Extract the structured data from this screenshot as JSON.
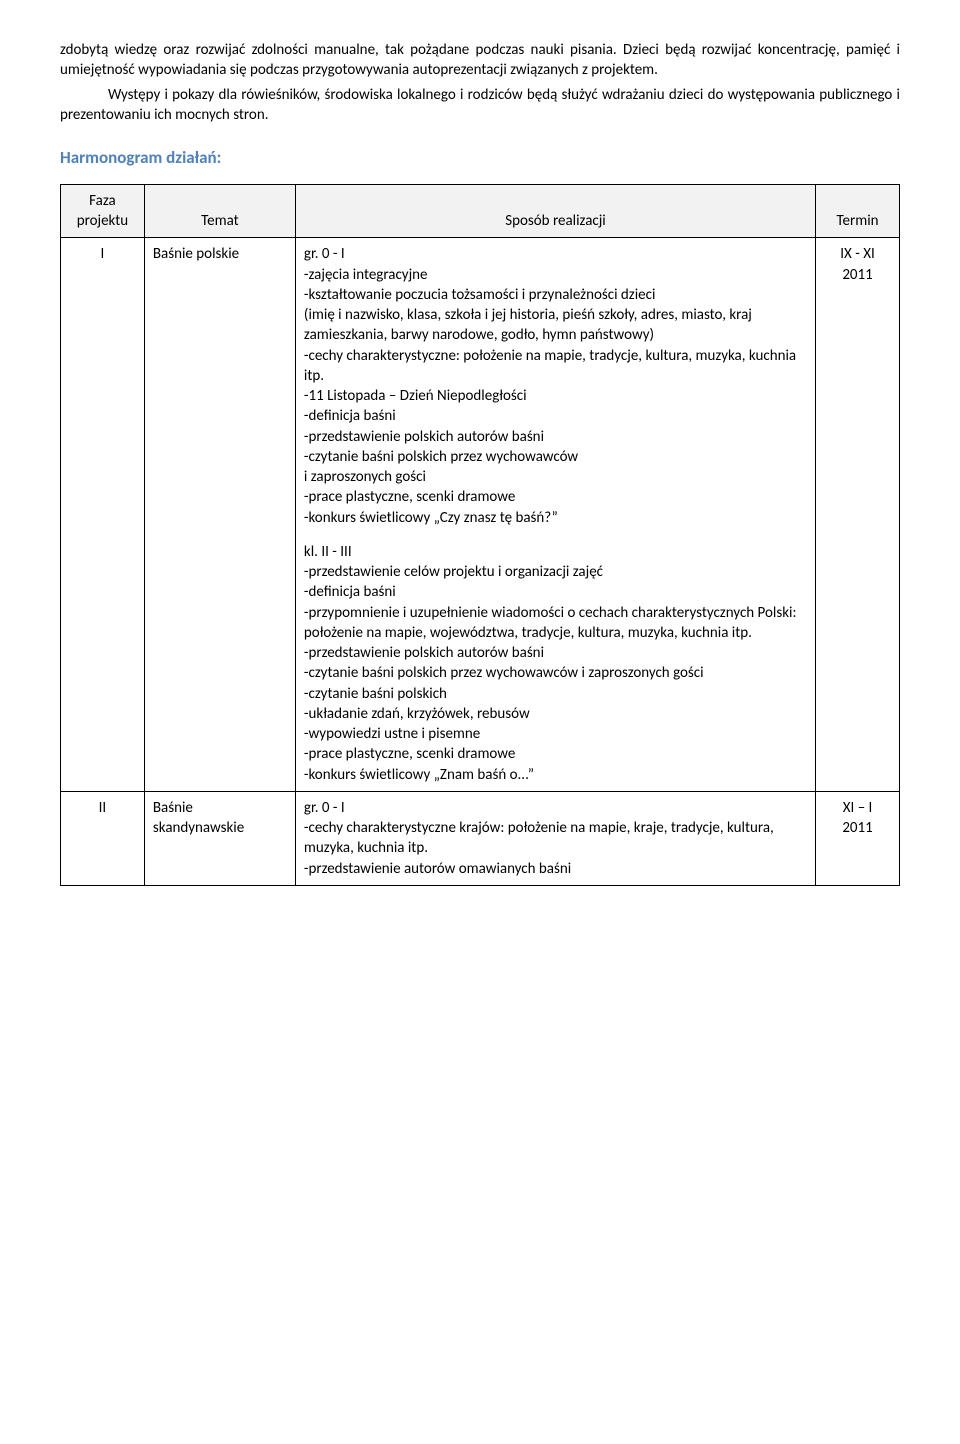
{
  "intro": {
    "p1": "zdobytą wiedzę oraz rozwijać zdolności manualne, tak pożądane podczas nauki pisania. Dzieci będą rozwijać koncentrację, pamięć i umiejętność wypowiadania się podczas przygotowywania autoprezentacji związanych z projektem.",
    "p2": "Występy i pokazy dla rówieśników, środowiska lokalnego i rodziców będą służyć wdrażaniu dzieci do występowania publicznego i prezentowaniu ich mocnych stron."
  },
  "section_heading": "Harmonogram działań:",
  "table": {
    "headers": {
      "faza_l1": "Faza",
      "faza_l2": "projektu",
      "temat": "Temat",
      "sposob": "Sposób realizacji",
      "termin": "Termin"
    },
    "rows": [
      {
        "faza": "I",
        "temat": "Baśnie polskie",
        "termin_l1": "IX - XI",
        "termin_l2": "2011",
        "sposob_block1_title": "gr. 0 - I",
        "sposob_block1_lines": [
          "-zajęcia integracyjne",
          "-kształtowanie poczucia tożsamości i przynależności dzieci",
          "(imię i nazwisko, klasa, szkoła i jej historia,  pieśń szkoły, adres, miasto, kraj zamieszkania, barwy narodowe, godło, hymn państwowy)",
          "-cechy charakterystyczne: położenie na mapie, tradycje, kultura, muzyka, kuchnia itp.",
          "-11 Listopada – Dzień Niepodległości",
          "-definicja baśni",
          "-przedstawienie polskich autorów baśni",
          "-czytanie baśni polskich przez wychowawców",
          "i zaproszonych gości",
          "-prace plastyczne, scenki dramowe",
          "-konkurs świetlicowy „Czy znasz tę baśń?”"
        ],
        "sposob_block2_title": "kl. II - III",
        "sposob_block2_lines": [
          "-przedstawienie celów projektu i organizacji zajęć",
          "-definicja baśni",
          "-przypomnienie i uzupełnienie wiadomości o cechach charakterystycznych Polski: położenie na mapie, województwa, tradycje, kultura, muzyka, kuchnia itp.",
          "-przedstawienie polskich autorów baśni",
          "-czytanie baśni polskich przez wychowawców i zaproszonych gości",
          "-czytanie baśni polskich",
          "-układanie zdań, krzyżówek, rebusów",
          "-wypowiedzi ustne i pisemne",
          "-prace plastyczne, scenki dramowe",
          "-konkurs świetlicowy „Znam baśń o...”"
        ]
      },
      {
        "faza": "II",
        "temat_l1": "Baśnie",
        "temat_l2": "skandynawskie",
        "termin_l1": "XI – I",
        "termin_l2": "2011",
        "sposob_title": "gr. 0 - I",
        "sposob_lines": [
          "-cechy charakterystyczne krajów: położenie na mapie, kraje, tradycje, kultura, muzyka, kuchnia itp.",
          "-przedstawienie autorów omawianych baśni"
        ]
      }
    ]
  }
}
